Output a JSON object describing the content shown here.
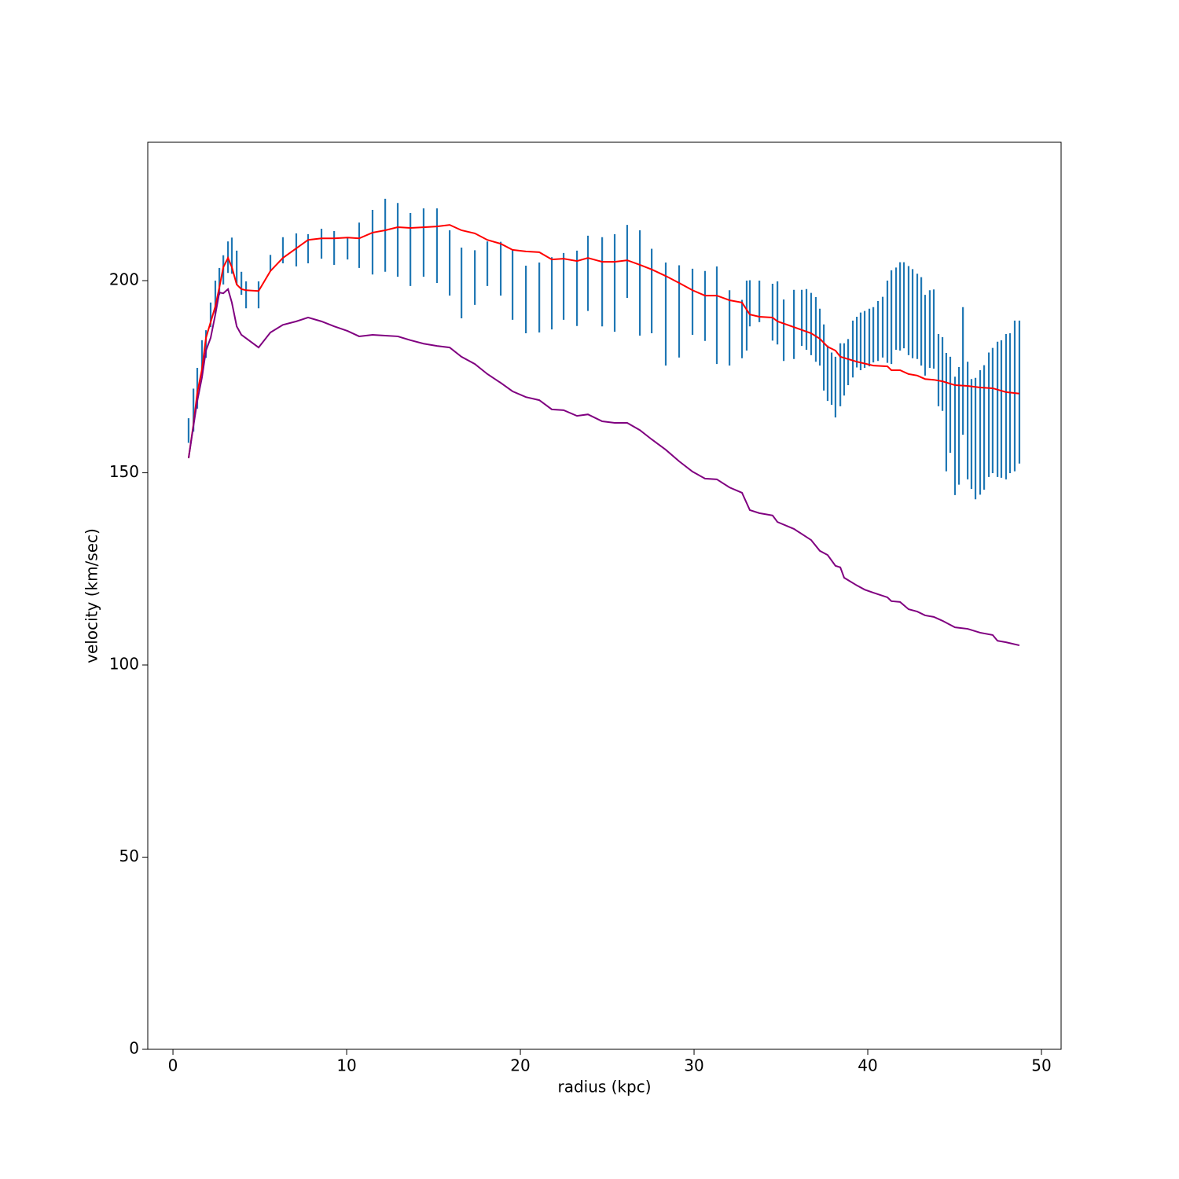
{
  "chart_data": {
    "type": "errorbar",
    "x_label": "radius (kpc)",
    "y_label": "velocity (km/sec)",
    "xlim": [
      -1.45,
      51.13
    ],
    "ylim": [
      0,
      236
    ],
    "xticks": [
      0,
      10,
      20,
      30,
      40,
      50
    ],
    "yticks": [
      0,
      50,
      100,
      150,
      200
    ],
    "series": [
      {
        "type": "errorbar",
        "color": "#1f77b4",
        "x": [
          0.9,
          1.18,
          1.4,
          1.67,
          1.9,
          2.17,
          2.44,
          2.67,
          2.9,
          3.17,
          3.39,
          3.67,
          3.94,
          4.21,
          4.93,
          5.61,
          6.33,
          7.1,
          7.78,
          8.55,
          9.28,
          10.05,
          10.72,
          11.49,
          12.22,
          12.94,
          13.67,
          14.43,
          15.2,
          15.93,
          16.61,
          17.38,
          18.1,
          18.87,
          19.55,
          20.32,
          21.09,
          21.81,
          22.49,
          23.26,
          23.89,
          24.71,
          25.43,
          26.15,
          26.88,
          27.56,
          28.37,
          29.14,
          29.91,
          30.63,
          31.31,
          32.04,
          32.76,
          33.03,
          33.21,
          33.76,
          34.52,
          34.8,
          35.16,
          35.75,
          36.2,
          36.47,
          36.74,
          37.01,
          37.24,
          37.47,
          37.69,
          37.92,
          38.14,
          38.42,
          38.64,
          38.87,
          39.14,
          39.37,
          39.59,
          39.82,
          40.09,
          40.32,
          40.59,
          40.86,
          41.13,
          41.36,
          41.63,
          41.86,
          42.08,
          42.35,
          42.58,
          42.85,
          43.08,
          43.3,
          43.57,
          43.8,
          44.07,
          44.3,
          44.52,
          44.75,
          45.02,
          45.25,
          45.48,
          45.75,
          45.97,
          46.2,
          46.47,
          46.7,
          46.97,
          47.19,
          47.47,
          47.69,
          47.96,
          48.19,
          48.46,
          48.73
        ],
        "values": [
          161,
          166.3,
          172,
          179.9,
          183.5,
          191.1,
          195.6,
          199.8,
          202.8,
          206.1,
          206.5,
          203.4,
          199.3,
          196.3,
          196.3,
          204.6,
          207.9,
          208,
          208.3,
          209.6,
          208.5,
          208.3,
          209.2,
          210,
          211.8,
          210.6,
          208.1,
          209.9,
          209.1,
          204.6,
          199.4,
          200.8,
          204.4,
          203.1,
          198.9,
          195.1,
          195.6,
          196.7,
          198.5,
          198,
          201.9,
          199.7,
          199.4,
          205,
          199.4,
          197.3,
          191.3,
          192,
          194.5,
          193.4,
          191,
          187.7,
          187.4,
          190.9,
          194.1,
          194.6,
          191.8,
          191.6,
          187.1,
          188.6,
          190.3,
          189.9,
          188.7,
          187.3,
          185.3,
          180,
          175.9,
          174.5,
          172.3,
          175.5,
          176.9,
          178.8,
          182.2,
          184,
          184.2,
          184.7,
          185.2,
          185.9,
          186.9,
          187.9,
          189.3,
          190.5,
          192.7,
          193.3,
          193.6,
          192.2,
          191.4,
          190.7,
          189.4,
          185.8,
          187.4,
          187.4,
          176.7,
          175.7,
          165.8,
          167.7,
          159.6,
          162.2,
          176.5,
          163.6,
          160.1,
          158.9,
          160.5,
          161.8,
          165.1,
          166.2,
          166.5,
          166.6,
          167.2,
          168.1,
          170,
          171
        ],
        "errors": [
          3.2,
          5.6,
          5.3,
          4.6,
          3.6,
          3.2,
          4.4,
          3.5,
          3.8,
          4.1,
          4.7,
          4.4,
          3,
          3.5,
          3.5,
          2.1,
          3.4,
          4.3,
          3.8,
          3.9,
          4.4,
          2.8,
          5.9,
          8.4,
          9.5,
          9.6,
          9.5,
          8.9,
          9.7,
          8.5,
          9.2,
          7.1,
          5.8,
          7,
          9.1,
          8.8,
          9.1,
          9.4,
          8.7,
          9.8,
          9.8,
          11.6,
          12.7,
          9.5,
          13.7,
          11,
          13.4,
          12,
          8.6,
          9.1,
          12.7,
          9.8,
          7.6,
          9.1,
          6,
          5.4,
          7.4,
          8.2,
          8,
          9,
          7.3,
          7.9,
          8.1,
          8.4,
          7.4,
          8.6,
          7.2,
          6.8,
          7.9,
          8.2,
          6.8,
          6,
          7.4,
          6.6,
          7.5,
          7.4,
          7.5,
          7.2,
          7.8,
          7.9,
          10.7,
          12.2,
          10.7,
          11.5,
          11.2,
          11.6,
          11.6,
          11.1,
          11.5,
          10.5,
          10.1,
          10.3,
          9.4,
          9.6,
          15.4,
          12.5,
          15.4,
          15.3,
          16.6,
          15.3,
          14.3,
          15.8,
          16.2,
          16.2,
          16.2,
          16.3,
          17.6,
          17.9,
          18.9,
          18.2,
          19.6,
          18.6
        ]
      },
      {
        "type": "line",
        "color": "red",
        "x": [
          0.9,
          1.18,
          1.4,
          1.67,
          1.9,
          2.17,
          2.44,
          2.67,
          2.9,
          3.17,
          3.39,
          3.67,
          3.94,
          4.21,
          4.93,
          5.61,
          6.33,
          7.1,
          7.78,
          8.55,
          9.28,
          10.05,
          10.72,
          11.49,
          12.22,
          12.94,
          13.67,
          14.43,
          15.2,
          15.93,
          16.61,
          17.38,
          18.1,
          18.87,
          19.55,
          20.32,
          21.09,
          21.81,
          22.49,
          23.26,
          23.89,
          24.71,
          25.43,
          26.15,
          26.88,
          27.56,
          28.37,
          29.14,
          29.91,
          30.63,
          31.31,
          32.04,
          32.76,
          33.21,
          33.76,
          34.52,
          34.8,
          35.75,
          36.74,
          37.24,
          37.69,
          38.14,
          38.42,
          39.37,
          40.32,
          41.13,
          41.36,
          41.86,
          42.35,
          42.85,
          43.3,
          43.8,
          44.3,
          45.02,
          45.75,
          46.47,
          47.19,
          47.96,
          48.73
        ],
        "values": [
          153.8,
          162.6,
          170.8,
          176.9,
          185.1,
          189.2,
          193.3,
          198.2,
          203.5,
          205.9,
          203.5,
          199.0,
          197.8,
          197.5,
          197.3,
          202.5,
          205.9,
          208.4,
          210.6,
          211.0,
          211.0,
          211.2,
          211.0,
          212.5,
          213.1,
          213.9,
          213.7,
          213.9,
          214.1,
          214.5,
          213.1,
          212.3,
          210.6,
          209.6,
          208.0,
          207.6,
          207.4,
          205.5,
          205.7,
          205.1,
          205.9,
          204.9,
          204.9,
          205.3,
          204.1,
          202.9,
          201.2,
          199.4,
          197.5,
          196.1,
          196.1,
          194.9,
          194.3,
          191.2,
          190.6,
          190.4,
          189.4,
          187.9,
          186.3,
          184.9,
          182.8,
          181.8,
          180.2,
          178.9,
          177.9,
          177.7,
          176.7,
          176.7,
          175.7,
          175.3,
          174.4,
          174.2,
          173.8,
          172.8,
          172.6,
          172.2,
          172.0,
          171.0,
          170.6
        ]
      },
      {
        "type": "line",
        "color": "purple",
        "x": [
          0.9,
          1.18,
          1.4,
          1.67,
          1.9,
          2.17,
          2.44,
          2.67,
          2.9,
          3.17,
          3.39,
          3.67,
          3.94,
          4.93,
          5.61,
          6.33,
          7.1,
          7.78,
          8.55,
          9.28,
          10.05,
          10.72,
          11.49,
          12.22,
          12.94,
          13.67,
          14.43,
          15.2,
          15.93,
          16.61,
          17.38,
          18.1,
          18.87,
          19.55,
          20.32,
          21.09,
          21.81,
          22.49,
          23.26,
          23.89,
          24.71,
          25.43,
          26.15,
          26.88,
          27.56,
          28.37,
          29.14,
          29.91,
          30.63,
          31.31,
          32.04,
          32.76,
          33.21,
          33.76,
          34.52,
          34.8,
          35.75,
          36.74,
          37.24,
          37.69,
          38.14,
          38.42,
          38.64,
          39.37,
          39.82,
          40.32,
          41.13,
          41.36,
          41.86,
          42.35,
          42.85,
          43.3,
          43.8,
          44.3,
          45.02,
          45.75,
          46.47,
          47.19,
          47.47,
          47.96,
          48.73
        ],
        "values": [
          153.8,
          162.2,
          168.7,
          174.8,
          181.8,
          185.1,
          191.2,
          196.9,
          196.7,
          197.8,
          194.3,
          188.1,
          185.9,
          182.6,
          186.5,
          188.5,
          189.4,
          190.4,
          189.4,
          188.1,
          186.9,
          185.5,
          185.9,
          185.7,
          185.5,
          184.5,
          183.6,
          183.0,
          182.6,
          180.2,
          178.3,
          175.7,
          173.4,
          171.2,
          169.7,
          168.9,
          166.5,
          166.3,
          164.8,
          165.2,
          163.4,
          163.0,
          163.0,
          161.1,
          158.7,
          156.0,
          153.0,
          150.3,
          148.5,
          148.3,
          146.2,
          144.8,
          140.3,
          139.5,
          138.9,
          137.2,
          135.4,
          132.5,
          129.7,
          128.6,
          125.8,
          125.4,
          122.7,
          120.7,
          119.6,
          118.8,
          117.6,
          116.6,
          116.4,
          114.5,
          113.9,
          112.9,
          112.5,
          111.5,
          109.8,
          109.4,
          108.4,
          107.8,
          106.3,
          105.9,
          105.1
        ]
      }
    ]
  }
}
